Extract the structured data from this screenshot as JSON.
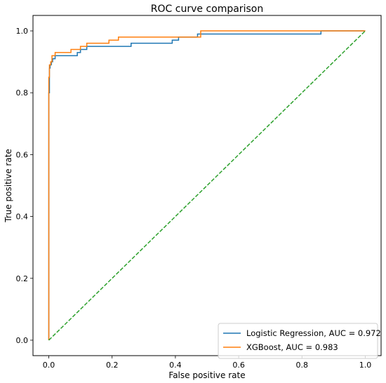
{
  "chart_data": {
    "type": "line",
    "title": "ROC curve comparison",
    "xlabel": "False positive rate",
    "ylabel": "True positive rate",
    "xlim": [
      -0.05,
      1.05
    ],
    "ylim": [
      -0.05,
      1.05
    ],
    "x_ticks": [
      0.0,
      0.2,
      0.4,
      0.6,
      0.8,
      1.0
    ],
    "y_ticks": [
      0.0,
      0.2,
      0.4,
      0.6,
      0.8,
      1.0
    ],
    "x_tick_labels": [
      "0.0",
      "0.2",
      "0.4",
      "0.6",
      "0.8",
      "1.0"
    ],
    "y_tick_labels": [
      "0.0",
      "0.2",
      "0.4",
      "0.6",
      "0.8",
      "1.0"
    ],
    "grid": false,
    "legend_position": "lower-right",
    "series": [
      {
        "name": "Logistic Regression, AUC = 0.972",
        "color": "#1f77b4",
        "style": "solid",
        "x": [
          0.0,
          0.0,
          0.002,
          0.002,
          0.004,
          0.004,
          0.008,
          0.008,
          0.012,
          0.012,
          0.02,
          0.02,
          0.09,
          0.09,
          0.1,
          0.1,
          0.12,
          0.12,
          0.26,
          0.26,
          0.39,
          0.39,
          0.41,
          0.41,
          0.47,
          0.47,
          0.86,
          0.86,
          1.0
        ],
        "y": [
          0.0,
          0.8,
          0.8,
          0.88,
          0.88,
          0.89,
          0.89,
          0.9,
          0.9,
          0.91,
          0.91,
          0.92,
          0.92,
          0.93,
          0.93,
          0.94,
          0.94,
          0.95,
          0.95,
          0.96,
          0.96,
          0.97,
          0.97,
          0.98,
          0.98,
          0.99,
          0.99,
          1.0,
          1.0
        ]
      },
      {
        "name": "XGBoost, AUC = 0.983",
        "color": "#ff7f0e",
        "style": "solid",
        "x": [
          0.0,
          0.0,
          0.002,
          0.002,
          0.006,
          0.006,
          0.01,
          0.01,
          0.02,
          0.02,
          0.07,
          0.07,
          0.1,
          0.1,
          0.12,
          0.12,
          0.19,
          0.19,
          0.22,
          0.22,
          0.48,
          0.48,
          1.0
        ],
        "y": [
          0.0,
          0.85,
          0.85,
          0.89,
          0.89,
          0.9,
          0.9,
          0.92,
          0.92,
          0.93,
          0.93,
          0.94,
          0.94,
          0.95,
          0.95,
          0.96,
          0.96,
          0.97,
          0.97,
          0.98,
          0.98,
          1.0,
          1.0
        ]
      },
      {
        "name": "",
        "color": "#2ca02c",
        "style": "dashed",
        "x": [
          0.0,
          1.0
        ],
        "y": [
          0.0,
          1.0
        ]
      }
    ]
  }
}
